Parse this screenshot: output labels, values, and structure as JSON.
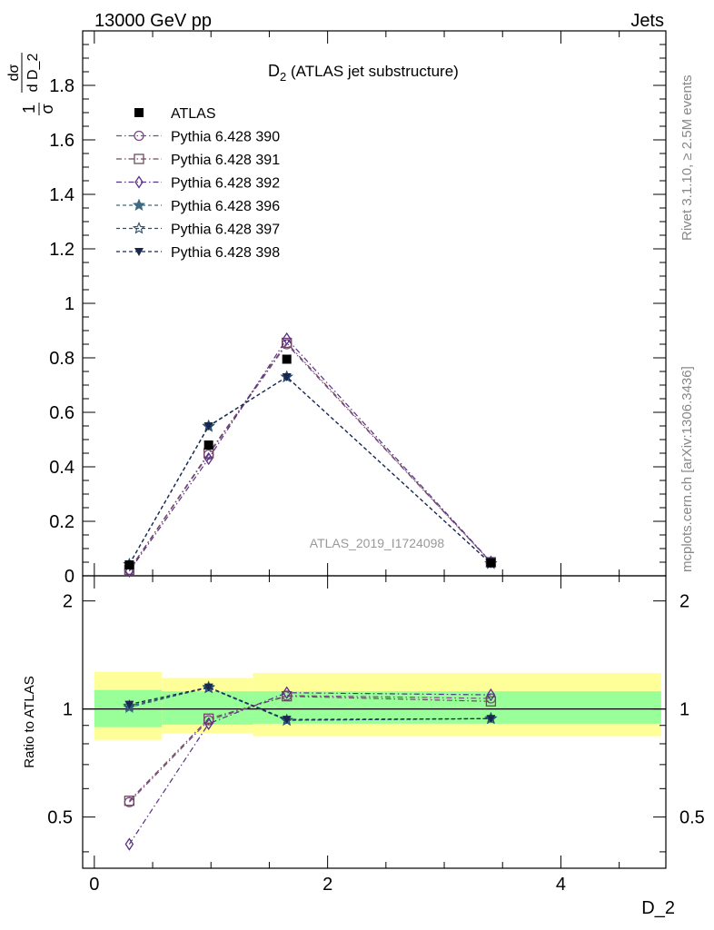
{
  "header": {
    "left": "13000 GeV pp",
    "right": "Jets"
  },
  "side_labels": {
    "rivet": "Rivet 3.1.10, ≥ 2.5M events",
    "mcplots": "mcplots.cern.ch [arXiv:1306.3436]"
  },
  "chart_data": {
    "type": "line",
    "title_main": "D",
    "title_sub": "2",
    "title_rest": " (ATLAS jet substructure)",
    "analysis_label": "ATLAS_2019_I1724098",
    "xlabel": "D_2",
    "ylabel_main": "dσ/d D_2",
    "ylabel_prefix_num": "1",
    "ylabel_prefix_den": "σ",
    "ylabel_main_num": "dσ",
    "ylabel_main_den": "d D_2",
    "ylabel_main_d": "d",
    "ylabel_ratio": "Ratio to ATLAS",
    "xlim": [
      -0.1,
      4.9
    ],
    "ylim_main": [
      0,
      2.0
    ],
    "ylim_ratio": [
      0.36,
      2.35
    ],
    "x_ticks": [
      0,
      2,
      4
    ],
    "x_tick_labels": [
      "0",
      "2",
      "4"
    ],
    "y_ticks_main": [
      0,
      0.2,
      0.4,
      0.6,
      0.8,
      1,
      1.2,
      1.4,
      1.6,
      1.8
    ],
    "y_tick_labels_main": [
      "0",
      "0.2",
      "0.4",
      "0.6",
      "0.8",
      "1",
      "1.2",
      "1.4",
      "1.6",
      "1.8"
    ],
    "y_ticks_ratio": [
      0.5,
      1,
      2
    ],
    "y_tick_labels_ratio": [
      "0.5",
      "1",
      "2"
    ],
    "bins": [
      {
        "lo": 0.0,
        "hi": 0.58
      },
      {
        "lo": 0.58,
        "hi": 1.36
      },
      {
        "lo": 1.36,
        "hi": 1.96
      },
      {
        "lo": 1.96,
        "hi": 4.86
      }
    ],
    "x": [
      0.3,
      0.98,
      1.65,
      3.4
    ],
    "data": {
      "name": "ATLAS",
      "values": [
        0.04,
        0.48,
        0.795,
        0.048
      ]
    },
    "band_green": [
      {
        "lo": 0.89,
        "hi": 1.13
      },
      {
        "lo": 0.905,
        "hi": 1.12
      },
      {
        "lo": 0.91,
        "hi": 1.12
      },
      {
        "lo": 0.91,
        "hi": 1.12
      }
    ],
    "band_yellow": [
      {
        "lo": 0.82,
        "hi": 1.27
      },
      {
        "lo": 0.855,
        "hi": 1.22
      },
      {
        "lo": 0.84,
        "hi": 1.26
      },
      {
        "lo": 0.84,
        "hi": 1.26
      }
    ],
    "legend_position": "top-left",
    "series": [
      {
        "name": "Pythia 6.428 390",
        "color": "#7a4a82",
        "dash": "6,3,1.5,3",
        "marker": "circle-open",
        "values": [
          0.022,
          0.445,
          0.85,
          0.05
        ],
        "ratio": [
          0.55,
          0.93,
          1.09,
          1.07
        ]
      },
      {
        "name": "Pythia 6.428 391",
        "color": "#6f4a5e",
        "dash": "6,3,1.5,3",
        "marker": "square-open",
        "values": [
          0.022,
          0.45,
          0.855,
          0.05
        ],
        "ratio": [
          0.555,
          0.94,
          1.085,
          1.05
        ]
      },
      {
        "name": "Pythia 6.428 392",
        "color": "#5a2f8a",
        "dash": "6,3,1.5,3",
        "marker": "diamond-open",
        "values": [
          0.017,
          0.43,
          0.87,
          0.051
        ],
        "ratio": [
          0.42,
          0.91,
          1.11,
          1.095
        ]
      },
      {
        "name": "Pythia 6.428 396",
        "color": "#3d6a82",
        "dash": "4,3",
        "marker": "star-filled",
        "values": [
          0.042,
          0.55,
          0.73,
          0.045
        ],
        "ratio": [
          1.01,
          1.15,
          0.93,
          0.94
        ]
      },
      {
        "name": "Pythia 6.428 397",
        "color": "#2e4f6f",
        "dash": "4,3",
        "marker": "star-open",
        "values": [
          0.042,
          0.548,
          0.73,
          0.045
        ],
        "ratio": [
          1.02,
          1.145,
          0.93,
          0.94
        ]
      },
      {
        "name": "Pythia 6.428 398",
        "color": "#1a2650",
        "dash": "4,3",
        "marker": "triangle-down",
        "values": [
          0.043,
          0.55,
          0.73,
          0.045
        ],
        "ratio": [
          1.03,
          1.15,
          0.935,
          0.94
        ]
      }
    ]
  }
}
